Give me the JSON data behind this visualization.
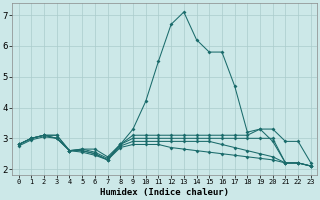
{
  "xlabel": "Humidex (Indice chaleur)",
  "bg_color": "#cce8e8",
  "grid_color": "#aacccc",
  "line_color": "#1a6b6b",
  "xlim": [
    -0.5,
    23.5
  ],
  "ylim": [
    1.8,
    7.4
  ],
  "lines": [
    [
      2.8,
      3.0,
      3.1,
      3.1,
      2.6,
      2.6,
      2.5,
      2.3,
      2.8,
      3.3,
      4.2,
      5.5,
      6.7,
      7.1,
      6.2,
      5.8,
      5.8,
      4.7,
      3.2,
      3.3,
      2.9,
      2.2,
      2.2,
      2.1
    ],
    [
      2.8,
      3.0,
      3.1,
      3.1,
      2.6,
      2.65,
      2.65,
      2.4,
      2.8,
      3.1,
      3.1,
      3.1,
      3.1,
      3.1,
      3.1,
      3.1,
      3.1,
      3.1,
      3.1,
      3.3,
      3.3,
      2.9,
      2.9,
      2.2
    ],
    [
      2.8,
      3.0,
      3.1,
      3.0,
      2.6,
      2.65,
      2.55,
      2.35,
      2.8,
      3.0,
      3.0,
      3.0,
      3.0,
      3.0,
      3.0,
      3.0,
      3.0,
      3.0,
      3.0,
      3.0,
      3.0,
      2.2,
      2.2,
      2.1
    ],
    [
      2.8,
      3.0,
      3.1,
      3.0,
      2.6,
      2.6,
      2.5,
      2.3,
      2.75,
      2.9,
      2.9,
      2.9,
      2.9,
      2.9,
      2.9,
      2.9,
      2.8,
      2.7,
      2.6,
      2.5,
      2.4,
      2.2,
      2.2,
      2.1
    ],
    [
      2.75,
      2.95,
      3.05,
      3.0,
      2.6,
      2.55,
      2.45,
      2.3,
      2.7,
      2.8,
      2.8,
      2.8,
      2.7,
      2.65,
      2.6,
      2.55,
      2.5,
      2.45,
      2.4,
      2.35,
      2.3,
      2.2,
      2.2,
      2.1
    ]
  ],
  "xticks": [
    0,
    1,
    2,
    3,
    4,
    5,
    6,
    7,
    8,
    9,
    10,
    11,
    12,
    13,
    14,
    15,
    16,
    17,
    18,
    19,
    20,
    21,
    22,
    23
  ],
  "yticks": [
    2,
    3,
    4,
    5,
    6,
    7
  ]
}
